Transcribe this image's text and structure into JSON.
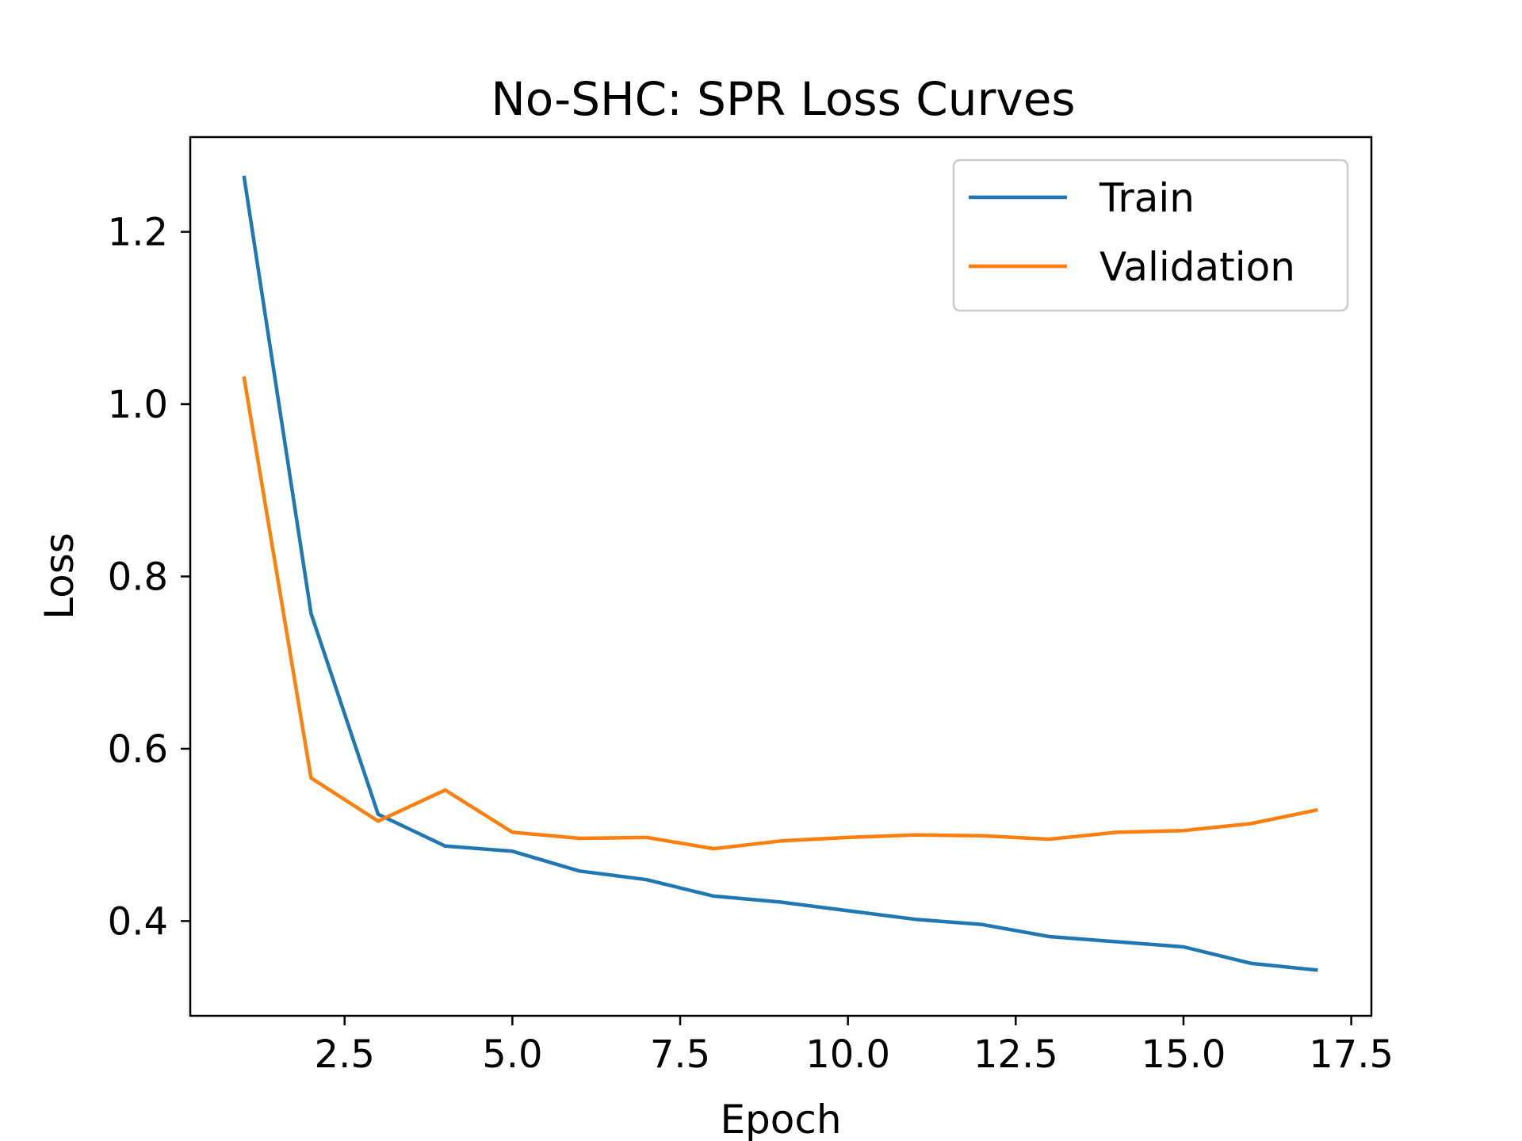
{
  "chart_data": {
    "type": "line",
    "title": "No-SHC: SPR Loss Curves",
    "xlabel": "Epoch",
    "ylabel": "Loss",
    "xlim": [
      0.2,
      17.8
    ],
    "ylim": [
      0.29,
      1.31
    ],
    "xticks": [
      2.5,
      5.0,
      7.5,
      10.0,
      12.5,
      15.0,
      17.5
    ],
    "xtick_labels": [
      "2.5",
      "5.0",
      "7.5",
      "10.0",
      "12.5",
      "15.0",
      "17.5"
    ],
    "yticks": [
      0.4,
      0.6,
      0.8,
      1.0,
      1.2
    ],
    "ytick_labels": [
      "0.4",
      "0.6",
      "0.8",
      "1.0",
      "1.2"
    ],
    "grid": false,
    "legend_position": "top-right",
    "x": [
      1,
      2,
      3,
      4,
      5,
      6,
      7,
      8,
      9,
      10,
      11,
      12,
      13,
      14,
      15,
      16,
      17
    ],
    "series": [
      {
        "name": "Train",
        "color": "#1f77b4",
        "values": [
          1.265,
          0.757,
          0.524,
          0.487,
          0.481,
          0.458,
          0.448,
          0.429,
          0.422,
          0.412,
          0.402,
          0.396,
          0.382,
          0.376,
          0.37,
          0.351,
          0.343
        ]
      },
      {
        "name": "Validation",
        "color": "#ff7f0e",
        "values": [
          1.032,
          0.566,
          0.516,
          0.552,
          0.503,
          0.496,
          0.497,
          0.484,
          0.493,
          0.497,
          0.5,
          0.499,
          0.495,
          0.503,
          0.505,
          0.513,
          0.529
        ]
      }
    ]
  }
}
